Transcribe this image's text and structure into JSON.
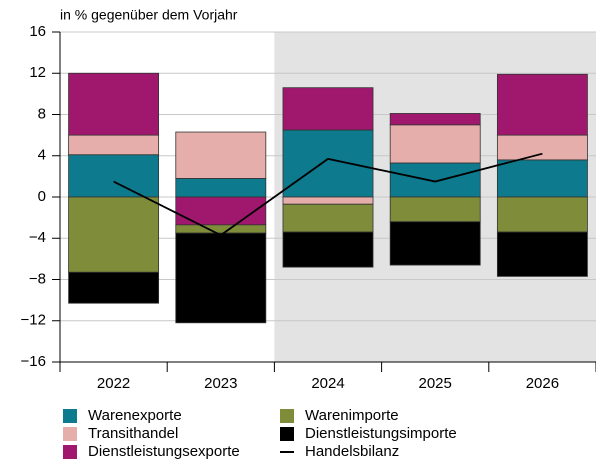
{
  "chart_data": {
    "type": "bar",
    "stacked": true,
    "subtitle": "in % gegenüber dem Vorjahr",
    "categories": [
      "2022",
      "2023",
      "2024",
      "2025",
      "2026"
    ],
    "shaded_from": "2024",
    "series": [
      {
        "name": "Warenexporte",
        "color": "#0e7a8e",
        "values": [
          4.1,
          1.8,
          6.5,
          3.3,
          3.6
        ]
      },
      {
        "name": "Transithandel",
        "color": "#e5aeaa",
        "values": [
          1.9,
          4.5,
          -0.7,
          3.7,
          2.4
        ]
      },
      {
        "name": "Dienstleistungsexporte",
        "color": "#a0186e",
        "values": [
          6.0,
          -2.7,
          4.1,
          1.1,
          5.9
        ]
      },
      {
        "name": "Warenimporte",
        "color": "#7f8c3a",
        "values": [
          -7.3,
          -0.8,
          -2.7,
          -2.4,
          -3.4
        ]
      },
      {
        "name": "Dienstleistungsimporte",
        "color": "#000000",
        "values": [
          -3.0,
          -8.7,
          -3.4,
          -4.2,
          -4.3
        ]
      },
      {
        "name": "Handelsbilanz",
        "color": "#000000",
        "type": "line",
        "values": [
          1.5,
          -3.7,
          3.7,
          1.5,
          4.2
        ]
      }
    ],
    "ylim": [
      -16,
      16
    ],
    "yticks": [
      {
        "value": -16,
        "label": "−16"
      },
      {
        "value": -12,
        "label": "−12"
      },
      {
        "value": -8,
        "label": "−8"
      },
      {
        "value": -4,
        "label": "−4"
      },
      0,
      4,
      8,
      12,
      16
    ],
    "grid": true
  }
}
